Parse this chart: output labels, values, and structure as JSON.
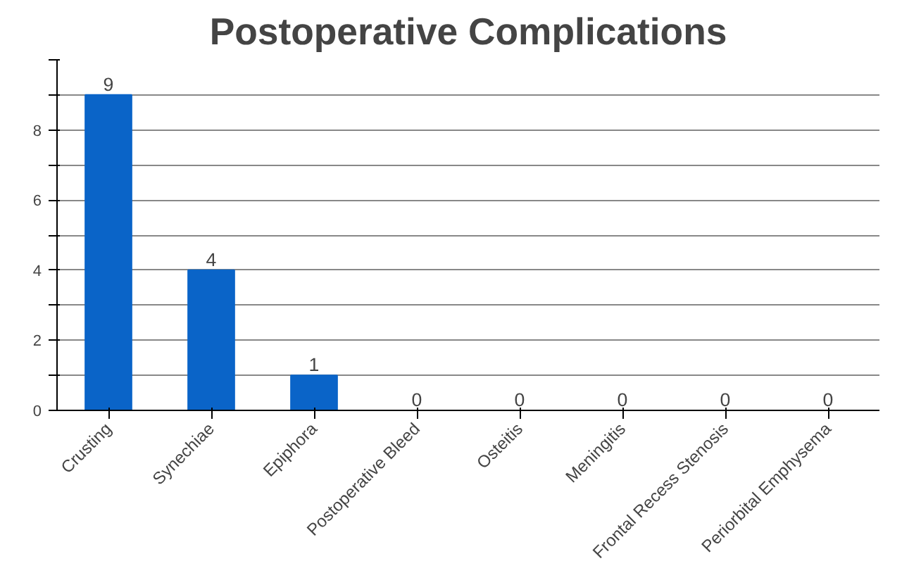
{
  "chart_data": {
    "type": "bar",
    "title": "Postoperative Complications",
    "categories": [
      "Crusting",
      "Synechiae",
      "Epiphora",
      "Postoperative Bleed",
      "Osteitis",
      "Meningitis",
      "Frontal Recess Stenosis",
      "Periorbital Emphysema"
    ],
    "values": [
      9,
      4,
      1,
      0,
      0,
      0,
      0,
      0
    ],
    "color": "#0a64c8",
    "ylim": [
      0,
      10
    ],
    "yticks": [
      0,
      {
        "value": 1,
        "label": null
      },
      2,
      {
        "value": 3,
        "label": null
      },
      4,
      {
        "value": 5,
        "label": null
      },
      6,
      {
        "value": 7,
        "label": null
      },
      8,
      {
        "value": 9,
        "label": null
      },
      {
        "value": 10,
        "label": null
      }
    ],
    "grid": "y",
    "data_labels": true
  }
}
